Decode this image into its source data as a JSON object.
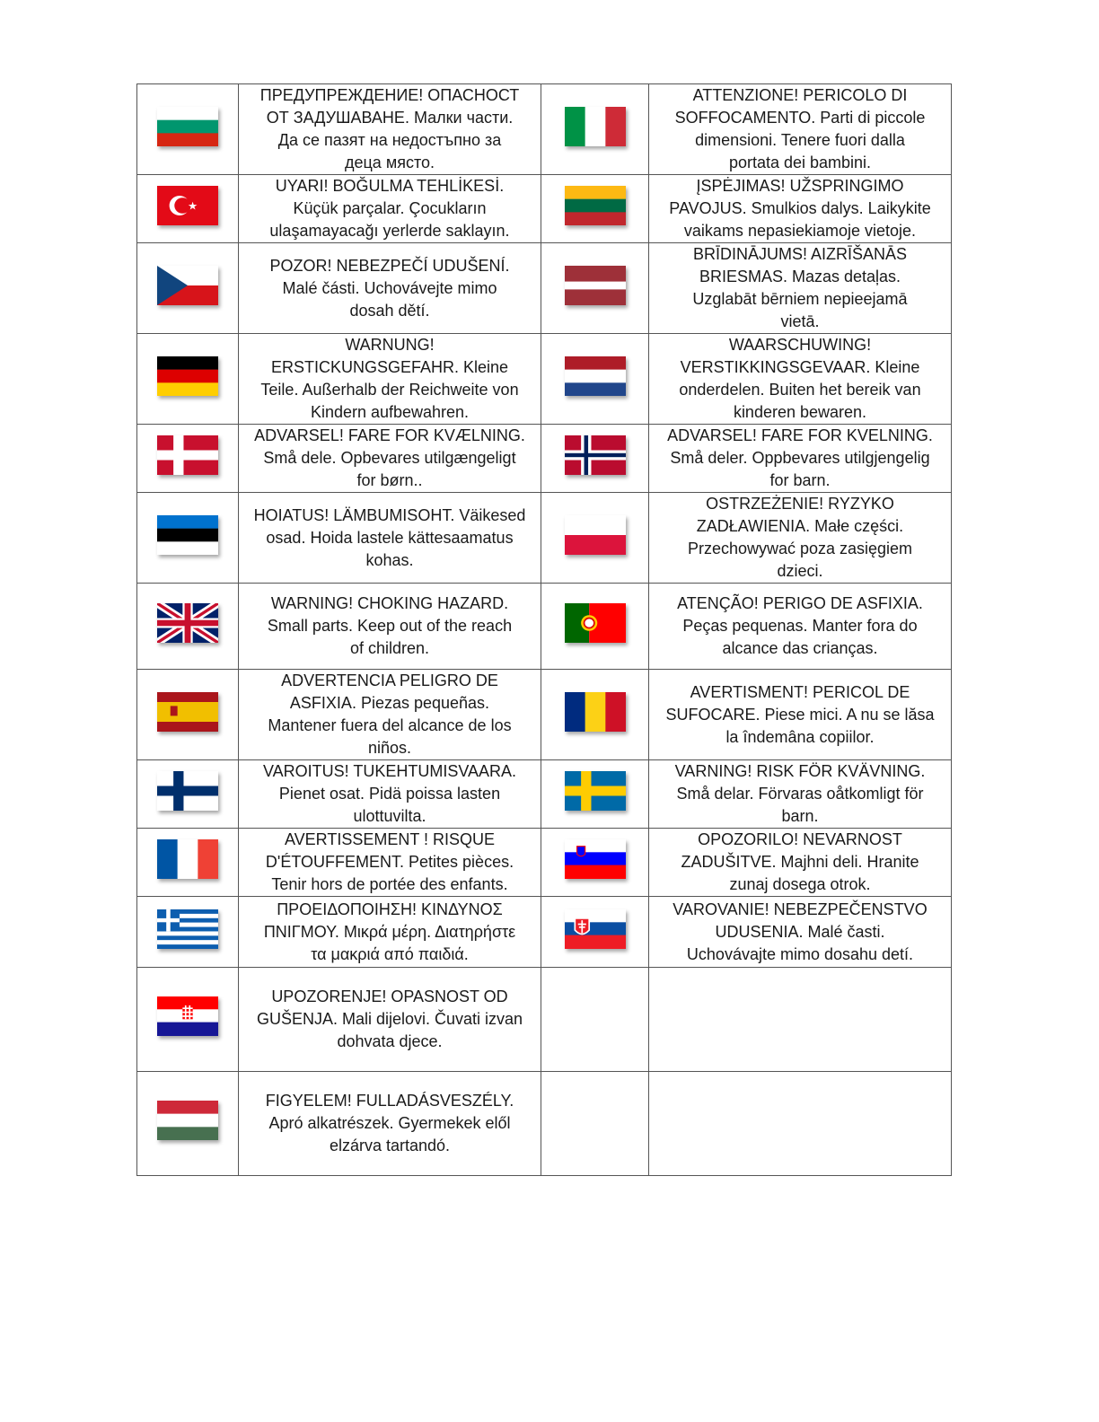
{
  "rows": [
    {
      "left": {
        "flag": "bg",
        "text": "ПРЕДУПРЕЖДЕНИЕ! ОПАСНОСТ\nОТ ЗАДУШАВАНЕ. Малки части.\nДа се пазят на недостъпно за\nдеца място."
      },
      "right": {
        "flag": "it",
        "text": "ATTENZIONE! PERICOLO DI\nSOFFOCAMENTO. Parti di piccole\ndimensioni. Tenere fuori dalla\nportata dei bambini."
      }
    },
    {
      "left": {
        "flag": "tr",
        "text": "UYARI! BOĞULMA TEHLİKESİ.\nKüçük parçalar. Çocukların\nulaşamayacağı yerlerde saklayın."
      },
      "right": {
        "flag": "lt",
        "text": "ĮSPĖJIMAS! UŽSPRINGIMO\nPAVOJUS. Smulkios dalys. Laikykite\nvaikams nepasiekiamoje vietoje."
      }
    },
    {
      "left": {
        "flag": "cz",
        "text": "POZOR! NEBEZPEČÍ UDUŠENÍ.\nMalé části. Uchovávejte mimo\ndosah dětí."
      },
      "right": {
        "flag": "lv",
        "text": "BRĪDINĀJUMS! AIZRĪŠANĀS\nBRIESMAS. Mazas detaļas.\nUzglabāt bērniem nepieejamā\nvietā."
      }
    },
    {
      "left": {
        "flag": "de",
        "text": "WARNUNG!\nERSTICKUNGSGEFAHR. Kleine\nTeile. Außerhalb der Reichweite von\nKindern aufbewahren."
      },
      "right": {
        "flag": "nl",
        "text": "WAARSCHUWING!\nVERSTIKKINGSGEVAAR. Kleine\nonderdelen. Buiten het bereik van\nkinderen bewaren."
      }
    },
    {
      "left": {
        "flag": "dk",
        "text": "ADVARSEL! FARE FOR KVÆLNING.\nSmå dele. Opbevares utilgængeligt\nfor børn.."
      },
      "right": {
        "flag": "no",
        "text": "ADVARSEL! FARE FOR KVELNING.\nSmå deler. Oppbevares utilgjengelig\nfor barn."
      }
    },
    {
      "left": {
        "flag": "ee",
        "text": "HOIATUS! LÄMBUMISOHT. Väikesed\nosad. Hoida lastele kättesaamatus\nkohas."
      },
      "right": {
        "flag": "pl",
        "text": "OSTRZEŻENIE! RYZYKO\nZADŁAWIENIA. Małe części.\nPrzechowywać poza zasięgiem\ndzieci."
      }
    },
    {
      "left": {
        "flag": "gb",
        "text": "WARNING! CHOKING HAZARD.\nSmall parts. Keep out of the reach\nof children."
      },
      "right": {
        "flag": "pt",
        "text": "ATENÇÃO! PERIGO DE ASFIXIA.\nPeças pequenas. Manter fora do\nalcance das crianças."
      }
    },
    {
      "left": {
        "flag": "es",
        "text": "ADVERTENCIA PELIGRO DE\nASFIXIA. Piezas pequeñas.\nMantener fuera del alcance de los\nniños."
      },
      "right": {
        "flag": "ro",
        "text": "AVERTISMENT! PERICOL DE\nSUFOCARE. Piese mici. A nu se lăsa\nla îndemâna copiilor."
      }
    },
    {
      "left": {
        "flag": "fi",
        "text": "VAROITUS! TUKEHTUMISVAARA.\nPienet osat. Pidä poissa lasten\nulottuvilta."
      },
      "right": {
        "flag": "se",
        "text": "VARNING! RISK FÖR KVÄVNING.\nSmå delar. Förvaras oåtkomligt för\nbarn."
      }
    },
    {
      "left": {
        "flag": "fr",
        "text": "AVERTISSEMENT ! RISQUE\nD'ÉTOUFFEMENT. Petites pièces.\nTenir hors de portée des enfants."
      },
      "right": {
        "flag": "si",
        "text": "OPOZORILO! NEVARNOST\nZADUŠITVE. Majhni deli. Hranite\nzunaj dosega otrok."
      }
    },
    {
      "left": {
        "flag": "gr",
        "text": "ΠΡΟΕΙΔΟΠΟΙΗΣΗ! ΚΙΝΔΥΝΟΣ\nΠΝΙΓΜΟΥ. Μικρά μέρη. Διατηρήστε\nτα μακριά από παιδιά."
      },
      "right": {
        "flag": "sk",
        "text": "VAROVANIE! NEBEZPEČENSTVO\nUDUSENIA. Malé časti.\nUchovávajte mimo dosahu detí."
      }
    },
    {
      "left": {
        "flag": "hr",
        "text": "UPOZORENJE! OPASNOST OD\nGUŠENJA. Mali dijelovi. Čuvati izvan\ndohvata djece."
      },
      "right": null
    },
    {
      "left": {
        "flag": "hu",
        "text": "FIGYELEM! FULLADÁSVESZÉLY.\nApró alkatrészek. Gyermekek elől\nelzárva tartandó."
      },
      "right": null
    }
  ]
}
